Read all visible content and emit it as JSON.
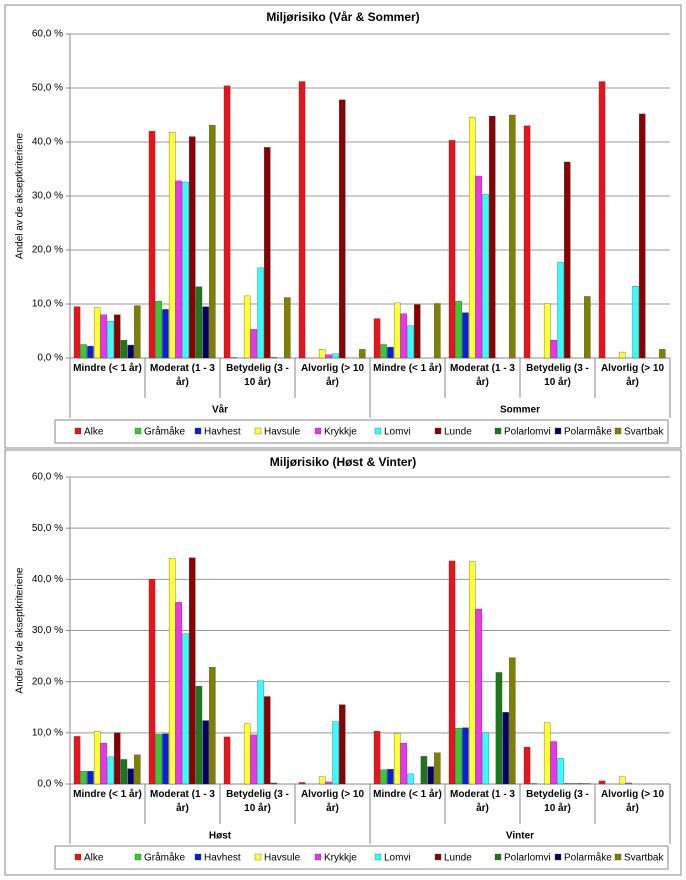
{
  "chart_data": [
    {
      "type": "bar",
      "title": "Miljørisiko  (Vår & Sommer)",
      "y_label": "Andel av de akseptkriteriene",
      "categories": [
        "Mindre (< 1 år)",
        "Moderat (1 - 3 år)",
        "Betydelig (3 - 10 år)",
        "Alvorlig (> 10 år)",
        "Mindre (< 1 år)",
        "Moderat (1 - 3 år)",
        "Betydelig (3 - 10 år)",
        "Alvorlig (> 10 år)"
      ],
      "groups": [
        "Vår",
        "Sommer"
      ],
      "ylim": [
        0,
        60
      ],
      "yticks": [
        {
          "value": 0,
          "label": "0,0 %"
        },
        {
          "value": 10,
          "label": "10,0 %"
        },
        {
          "value": 20,
          "label": "20,0 %"
        },
        {
          "value": 30,
          "label": "30,0 %"
        },
        {
          "value": 40,
          "label": "40,0 %"
        },
        {
          "value": 50,
          "label": "50,0 %"
        },
        {
          "value": 60,
          "label": "60,0 %"
        }
      ],
      "grid": true,
      "legend": "bottom",
      "series": [
        {
          "name": "Alke",
          "color": "#e8131b",
          "values": [
            9.5,
            42.0,
            50.4,
            51.2,
            7.3,
            40.3,
            43.0,
            51.2
          ]
        },
        {
          "name": "Gråmåke",
          "color": "#33cc33",
          "values": [
            2.5,
            10.5,
            0.1,
            0,
            2.5,
            10.5,
            0,
            0
          ]
        },
        {
          "name": "Havhest",
          "color": "#0a1fd6",
          "values": [
            2.2,
            9.0,
            0,
            0,
            2.0,
            8.4,
            0,
            0
          ]
        },
        {
          "name": "Havsule",
          "color": "#ffff33",
          "values": [
            9.3,
            41.8,
            11.5,
            1.6,
            10.2,
            44.6,
            10.1,
            1.1
          ]
        },
        {
          "name": "Krykkje",
          "color": "#ee33ee",
          "values": [
            8.0,
            32.8,
            5.3,
            0.6,
            8.2,
            33.7,
            3.3,
            0
          ]
        },
        {
          "name": "Lomvi",
          "color": "#33ffff",
          "values": [
            6.8,
            32.6,
            16.7,
            0.8,
            6.0,
            30.3,
            17.7,
            13.3
          ]
        },
        {
          "name": "Lunde",
          "color": "#8b0000",
          "values": [
            8.0,
            41.0,
            39.0,
            47.8,
            9.9,
            44.8,
            36.3,
            45.2
          ]
        },
        {
          "name": "Polarlomvi",
          "color": "#1a7a1a",
          "values": [
            3.3,
            13.2,
            0.1,
            0,
            0,
            0,
            0,
            0
          ]
        },
        {
          "name": "Polarmåke",
          "color": "#000066",
          "values": [
            2.4,
            9.5,
            0,
            0,
            0,
            0,
            0,
            0
          ]
        },
        {
          "name": "Svartbak",
          "color": "#808000",
          "values": [
            9.7,
            43.1,
            11.2,
            1.6,
            10.1,
            45.0,
            11.4,
            1.6
          ]
        }
      ]
    },
    {
      "type": "bar",
      "title": "Miljørisiko  (Høst & Vinter)",
      "y_label": "Andel av de akseptkriteriene",
      "categories": [
        "Mindre (< 1 år)",
        "Moderat (1 - 3 år)",
        "Betydelig (3 - 10 år)",
        "Alvorlig (> 10 år)",
        "Mindre (< 1 år)",
        "Moderat (1 - 3 år)",
        "Betydelig (3 - 10 år)",
        "Alvorlig (> 10 år)"
      ],
      "groups": [
        "Høst",
        "Vinter"
      ],
      "ylim": [
        0,
        60
      ],
      "yticks": [
        {
          "value": 0,
          "label": "0,0 %"
        },
        {
          "value": 10,
          "label": "10,0 %"
        },
        {
          "value": 20,
          "label": "20,0 %"
        },
        {
          "value": 30,
          "label": "30,0 %"
        },
        {
          "value": 40,
          "label": "40,0 %"
        },
        {
          "value": 50,
          "label": "50,0 %"
        },
        {
          "value": 60,
          "label": "60,0 %"
        }
      ],
      "grid": true,
      "legend": "bottom",
      "series": [
        {
          "name": "Alke",
          "color": "#e8131b",
          "values": [
            9.3,
            40.0,
            9.2,
            0.3,
            10.3,
            43.6,
            7.2,
            0.6
          ]
        },
        {
          "name": "Gråmåke",
          "color": "#33cc33",
          "values": [
            2.5,
            9.7,
            0,
            0,
            2.8,
            10.9,
            0.1,
            0
          ]
        },
        {
          "name": "Havhest",
          "color": "#0a1fd6",
          "values": [
            2.5,
            9.8,
            0,
            0,
            2.9,
            11.0,
            0,
            0
          ]
        },
        {
          "name": "Havsule",
          "color": "#ffff33",
          "values": [
            10.3,
            44.1,
            11.8,
            1.4,
            9.9,
            43.5,
            12.0,
            1.4
          ]
        },
        {
          "name": "Krykkje",
          "color": "#ee33ee",
          "values": [
            8.0,
            35.5,
            9.6,
            0.4,
            8.0,
            34.2,
            8.3,
            0.2
          ]
        },
        {
          "name": "Lomvi",
          "color": "#33ffff",
          "values": [
            5.3,
            29.4,
            20.2,
            12.2,
            2.0,
            10.0,
            5.0,
            0
          ]
        },
        {
          "name": "Lunde",
          "color": "#8b0000",
          "values": [
            10.0,
            44.2,
            17.1,
            15.5,
            0,
            0,
            0.1,
            0
          ]
        },
        {
          "name": "Polarlomvi",
          "color": "#1a7a1a",
          "values": [
            4.8,
            19.1,
            0.2,
            0,
            5.4,
            21.8,
            0.1,
            0
          ]
        },
        {
          "name": "Polarmåke",
          "color": "#000066",
          "values": [
            3.0,
            12.4,
            0,
            0,
            3.4,
            14.0,
            0.1,
            0
          ]
        },
        {
          "name": "Svartbak",
          "color": "#808000",
          "values": [
            5.7,
            22.8,
            0,
            0,
            6.1,
            24.7,
            0.1,
            0
          ]
        }
      ]
    }
  ]
}
